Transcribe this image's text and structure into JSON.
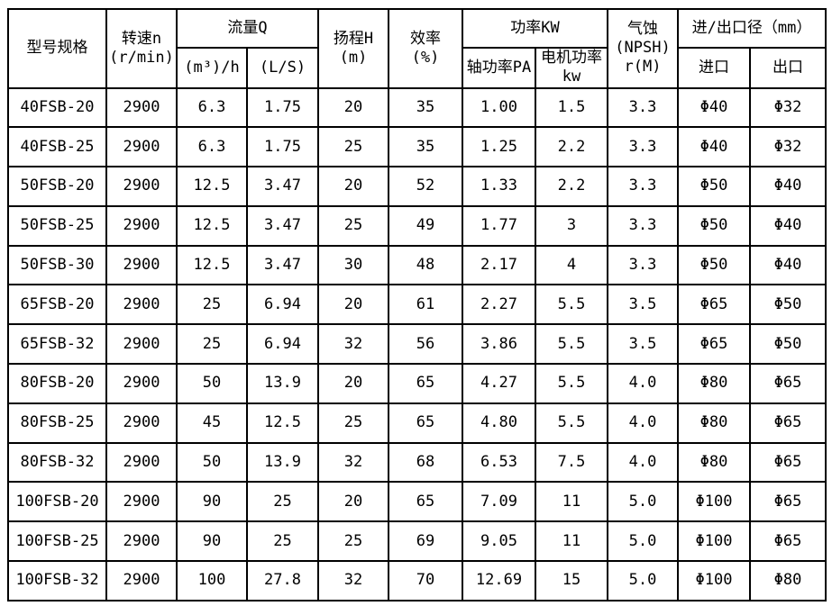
{
  "table": {
    "headers": {
      "model": "型号规格",
      "speed": "转速n\n(r/min)",
      "flow": "流量Q",
      "flow_m3h": "(m³)/h",
      "flow_ls": "(L/S)",
      "head": "扬程H\n(m)",
      "efficiency": "效率\n(%)",
      "power": "功率KW",
      "shaft_power": "轴功率PA",
      "motor_power": "电机功率\nkw",
      "npsh": "气蚀\n(NPSH)\nr(M)",
      "inlet_outlet": "进/出口径（mm）",
      "inlet": "进口",
      "outlet": "出口"
    },
    "rows": [
      [
        "40FSB-20",
        "2900",
        "6.3",
        "1.75",
        "20",
        "35",
        "1.00",
        "1.5",
        "3.3",
        "Φ40",
        "Φ32"
      ],
      [
        "40FSB-25",
        "2900",
        "6.3",
        "1.75",
        "25",
        "35",
        "1.25",
        "2.2",
        "3.3",
        "Φ40",
        "Φ32"
      ],
      [
        "50FSB-20",
        "2900",
        "12.5",
        "3.47",
        "20",
        "52",
        "1.33",
        "2.2",
        "3.3",
        "Φ50",
        "Φ40"
      ],
      [
        "50FSB-25",
        "2900",
        "12.5",
        "3.47",
        "25",
        "49",
        "1.77",
        "3",
        "3.3",
        "Φ50",
        "Φ40"
      ],
      [
        "50FSB-30",
        "2900",
        "12.5",
        "3.47",
        "30",
        "48",
        "2.17",
        "4",
        "3.3",
        "Φ50",
        "Φ40"
      ],
      [
        "65FSB-20",
        "2900",
        "25",
        "6.94",
        "20",
        "61",
        "2.27",
        "5.5",
        "3.5",
        "Φ65",
        "Φ50"
      ],
      [
        "65FSB-32",
        "2900",
        "25",
        "6.94",
        "32",
        "56",
        "3.86",
        "5.5",
        "3.5",
        "Φ65",
        "Φ50"
      ],
      [
        "80FSB-20",
        "2900",
        "50",
        "13.9",
        "20",
        "65",
        "4.27",
        "5.5",
        "4.0",
        "Φ80",
        "Φ65"
      ],
      [
        "80FSB-25",
        "2900",
        "45",
        "12.5",
        "25",
        "65",
        "4.80",
        "5.5",
        "4.0",
        "Φ80",
        "Φ65"
      ],
      [
        "80FSB-32",
        "2900",
        "50",
        "13.9",
        "32",
        "68",
        "6.53",
        "7.5",
        "4.0",
        "Φ80",
        "Φ65"
      ],
      [
        "100FSB-20",
        "2900",
        "90",
        "25",
        "20",
        "65",
        "7.09",
        "11",
        "5.0",
        "Φ100",
        "Φ65"
      ],
      [
        "100FSB-25",
        "2900",
        "90",
        "25",
        "25",
        "69",
        "9.05",
        "11",
        "5.0",
        "Φ100",
        "Φ65"
      ],
      [
        "100FSB-32",
        "2900",
        "100",
        "27.8",
        "32",
        "70",
        "12.69",
        "15",
        "5.0",
        "Φ100",
        "Φ80"
      ]
    ]
  }
}
